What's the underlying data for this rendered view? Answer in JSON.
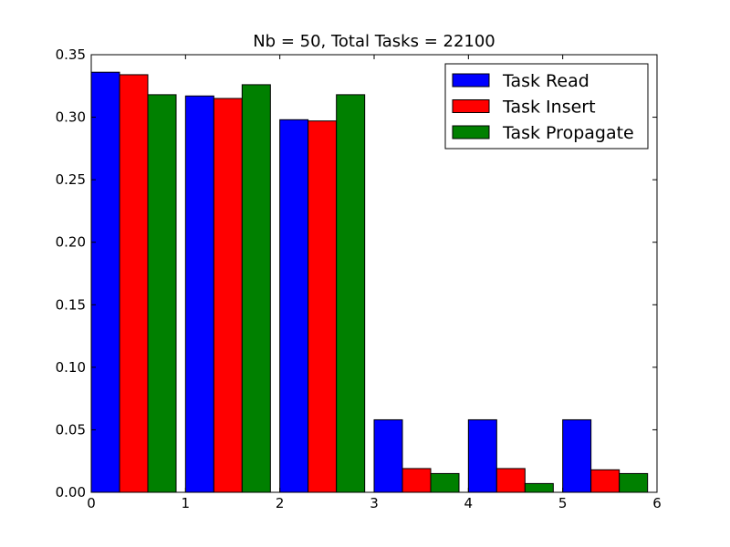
{
  "chart_data": {
    "type": "bar",
    "title": "Nb = 50, Total Tasks = 22100",
    "xlabel": "",
    "ylabel": "",
    "xlim": [
      0,
      6
    ],
    "ylim": [
      0,
      0.35
    ],
    "x_ticks": [
      "0",
      "1",
      "2",
      "3",
      "4",
      "5",
      "6"
    ],
    "y_ticks": [
      "0.00",
      "0.05",
      "0.10",
      "0.15",
      "0.20",
      "0.25",
      "0.30",
      "0.35"
    ],
    "x": [
      0,
      1,
      2,
      3,
      4,
      5
    ],
    "bar_width": 0.3,
    "grid": false,
    "legend_position": "top-right",
    "series": [
      {
        "name": "Task Read",
        "color": "#0000ff",
        "values": [
          0.336,
          0.317,
          0.298,
          0.058,
          0.058,
          0.058
        ]
      },
      {
        "name": "Task Insert",
        "color": "#ff0000",
        "values": [
          0.334,
          0.315,
          0.297,
          0.019,
          0.019,
          0.018
        ]
      },
      {
        "name": "Task Propagate",
        "color": "#008000",
        "values": [
          0.318,
          0.326,
          0.318,
          0.015,
          0.007,
          0.015
        ]
      }
    ]
  }
}
